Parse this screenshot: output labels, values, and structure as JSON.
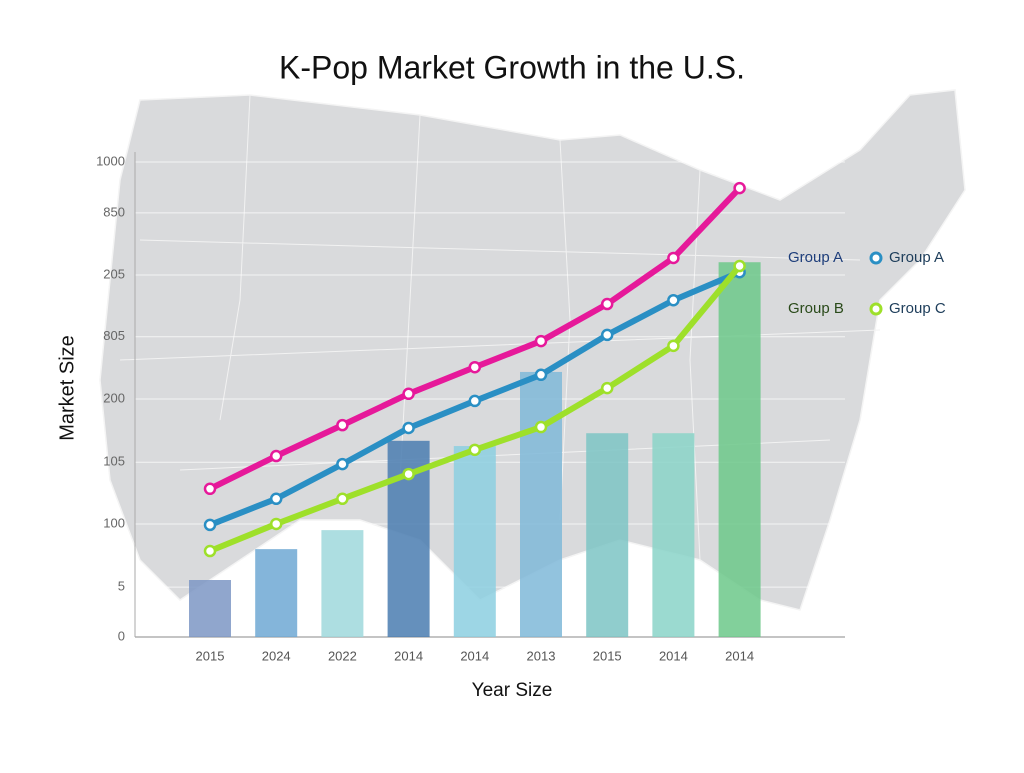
{
  "chart_data": {
    "type": "bar_line",
    "title": "K-Pop Market Growth in the U.S.",
    "x_label": "Year Size",
    "y_label": "Market Size",
    "categories": [
      "2015",
      "2024",
      "2022",
      "2014",
      "2014",
      "2013",
      "2015",
      "2014",
      "2014"
    ],
    "values": [
      120,
      185,
      225,
      413,
      402,
      558,
      429,
      429,
      789
    ],
    "colors": [
      "#7d96c4",
      "#6fa8d4",
      "#9fd8dc",
      "#4a7cb0",
      "#8ccfe0",
      "#7fb8d8",
      "#7cc4c4",
      "#8ad4c8",
      "#6cc88a"
    ],
    "series": [
      {
        "color": "#e6199a",
        "values": [
          312,
          381,
          446,
          512,
          568,
          623,
          701,
          798,
          945
        ]
      },
      {
        "name": "Group A",
        "color": "#2a8fc4",
        "values": [
          236,
          291,
          364,
          440,
          497,
          552,
          636,
          709,
          768
        ]
      },
      {
        "name": "Group C",
        "color": "#9ee02a",
        "values": [
          181,
          238,
          291,
          343,
          394,
          442,
          524,
          613,
          781
        ]
      }
    ],
    "annotations": [
      "Group A",
      "Group B"
    ],
    "ylim": [
      0,
      1000
    ],
    "yticks": [
      0,
      {
        "value": 105,
        "label": "5"
      },
      {
        "value": 238,
        "label": "100"
      },
      {
        "value": 368,
        "label": "105"
      },
      {
        "value": 501,
        "label": "200"
      },
      {
        "value": 632,
        "label": "805"
      },
      {
        "value": 762,
        "label": "205"
      },
      {
        "value": 893,
        "label": "850"
      },
      1000
    ],
    "grid": true
  }
}
